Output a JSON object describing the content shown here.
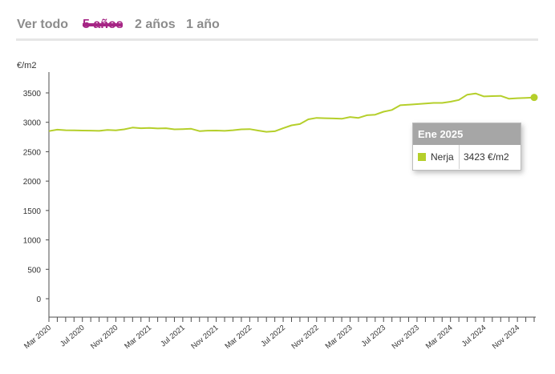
{
  "tabs": [
    {
      "label": "Ver todo",
      "active": false
    },
    {
      "label": "5 años",
      "active": true
    },
    {
      "label": "2 años",
      "active": false
    },
    {
      "label": "1 año",
      "active": false
    }
  ],
  "colors": {
    "accent": "#a62585",
    "inactive_tab": "#8c8c8c",
    "series": "#b5cf2b",
    "tooltip_header": "#a6a6a6"
  },
  "tooltip": {
    "date": "Ene 2025",
    "series_name": "Nerja",
    "value": "3423 €/m2"
  },
  "chart_data": {
    "type": "line",
    "ylabel": "€/m2",
    "ylim": [
      0,
      3500
    ],
    "y_ticks": [
      0,
      500,
      1000,
      1500,
      2000,
      2500,
      3000,
      3500
    ],
    "x_ticks": [
      "Mar 2020",
      "Jul 2020",
      "Nov 2020",
      "Mar 2021",
      "Jul 2021",
      "Nov 2021",
      "Mar 2022",
      "Jul 2022",
      "Nov 2022",
      "Mar 2023",
      "Jul 2023",
      "Nov 2023",
      "Mar 2024",
      "Jul 2024",
      "Nov 2024"
    ],
    "x_start": "2020-03",
    "x_end": "2025-01",
    "legend": "tooltip",
    "grid": false,
    "series": [
      {
        "name": "Nerja",
        "x": [
          "2020-03",
          "2020-04",
          "2020-05",
          "2020-06",
          "2020-07",
          "2020-08",
          "2020-09",
          "2020-10",
          "2020-11",
          "2020-12",
          "2021-01",
          "2021-02",
          "2021-03",
          "2021-04",
          "2021-05",
          "2021-06",
          "2021-07",
          "2021-08",
          "2021-09",
          "2021-10",
          "2021-11",
          "2021-12",
          "2022-01",
          "2022-02",
          "2022-03",
          "2022-04",
          "2022-05",
          "2022-06",
          "2022-07",
          "2022-08",
          "2022-09",
          "2022-10",
          "2022-11",
          "2022-12",
          "2023-01",
          "2023-02",
          "2023-03",
          "2023-04",
          "2023-05",
          "2023-06",
          "2023-07",
          "2023-08",
          "2023-09",
          "2023-10",
          "2023-11",
          "2023-12",
          "2024-01",
          "2024-02",
          "2024-03",
          "2024-04",
          "2024-05",
          "2024-06",
          "2024-07",
          "2024-08",
          "2024-09",
          "2024-10",
          "2024-11",
          "2024-12",
          "2025-01"
        ],
        "values": [
          2850,
          2875,
          2865,
          2862,
          2860,
          2858,
          2855,
          2870,
          2862,
          2880,
          2910,
          2900,
          2905,
          2895,
          2900,
          2880,
          2885,
          2890,
          2850,
          2858,
          2860,
          2855,
          2865,
          2880,
          2885,
          2860,
          2838,
          2848,
          2900,
          2948,
          2970,
          3050,
          3075,
          3070,
          3065,
          3060,
          3090,
          3075,
          3120,
          3130,
          3180,
          3210,
          3290,
          3300,
          3310,
          3320,
          3330,
          3330,
          3350,
          3380,
          3470,
          3490,
          3440,
          3445,
          3450,
          3400,
          3410,
          3415,
          3423
        ]
      }
    ],
    "highlight": {
      "x": "2025-01",
      "value": 3423
    }
  }
}
